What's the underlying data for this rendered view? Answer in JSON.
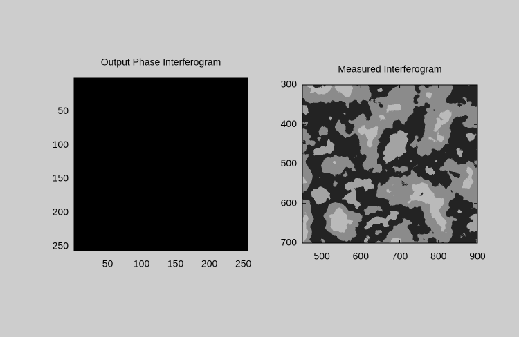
{
  "chart_data": [
    {
      "type": "image",
      "title": "Output Phase Interferogram",
      "xlim": [
        0.5,
        256.5
      ],
      "ylim": [
        0.5,
        256.5
      ],
      "y_reversed": true,
      "xticks": [
        50,
        100,
        150,
        200,
        250
      ],
      "yticks": [
        50,
        100,
        150,
        200,
        250
      ]
    },
    {
      "type": "image",
      "title": "Measured Interferogram",
      "xlim": [
        450,
        900
      ],
      "ylim": [
        300,
        700
      ],
      "y_reversed": true,
      "xticks": [
        500,
        600,
        700,
        800,
        900
      ],
      "yticks": [
        300,
        400,
        500,
        600,
        700
      ]
    }
  ]
}
